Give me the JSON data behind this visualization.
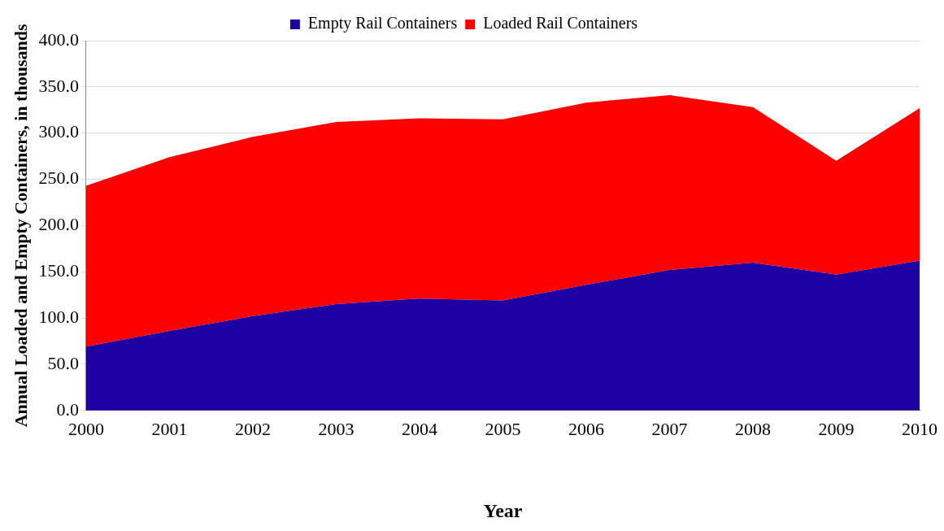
{
  "chart_data": {
    "type": "area",
    "stacked": true,
    "xlabel": "Year",
    "ylabel": "Annual Loaded and Empty Containers, in thousands",
    "categories": [
      "2000",
      "2001",
      "2002",
      "2003",
      "2004",
      "2005",
      "2006",
      "2007",
      "2008",
      "2009",
      "2010"
    ],
    "series": [
      {
        "name": "Empty Rail Containers",
        "color": "#1f00a0",
        "values": [
          69,
          86,
          102,
          115,
          121,
          119,
          136,
          152,
          160,
          147,
          162
        ]
      },
      {
        "name": "Loaded Rail Containers",
        "color": "#ff0000",
        "values": [
          174,
          188,
          194,
          197,
          195,
          196,
          197,
          189,
          168,
          123,
          165
        ]
      }
    ],
    "ylim": [
      0,
      400
    ],
    "yticks": [
      {
        "value": 0,
        "label": "0.0"
      },
      {
        "value": 50,
        "label": "50.0"
      },
      {
        "value": 100,
        "label": "100.0"
      },
      {
        "value": 150,
        "label": "150.0"
      },
      {
        "value": 200,
        "label": "200.0"
      },
      {
        "value": 250,
        "label": "250.0"
      },
      {
        "value": 300,
        "label": "300.0"
      },
      {
        "value": 350,
        "label": "350.0"
      },
      {
        "value": 400,
        "label": "400.0"
      }
    ],
    "grid": "y",
    "legend": "top",
    "marker": "none"
  }
}
